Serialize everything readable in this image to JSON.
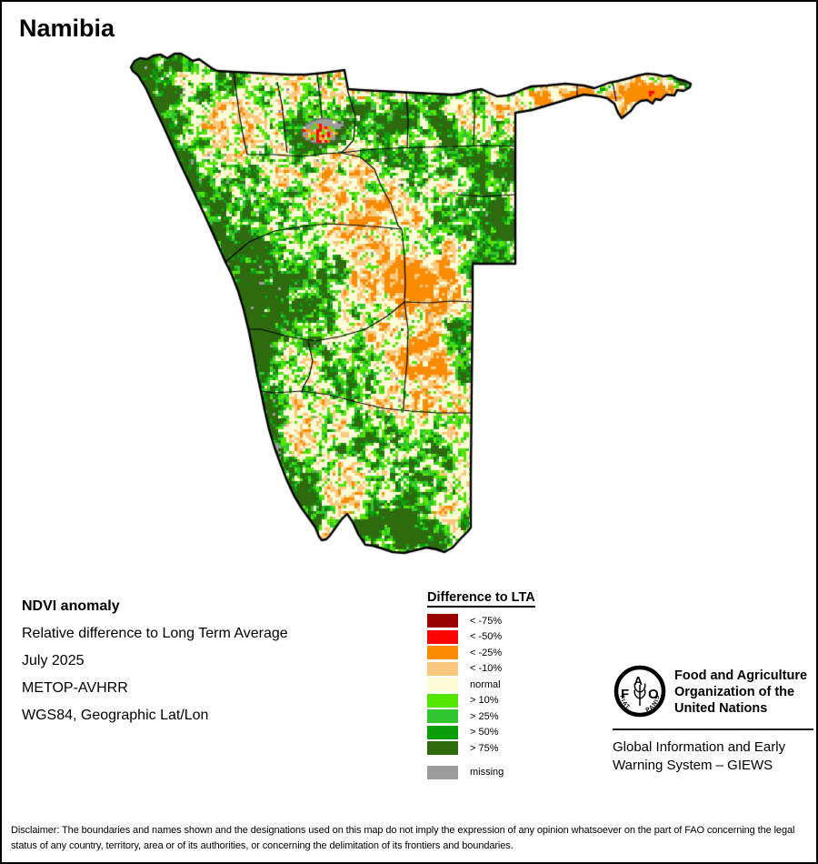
{
  "page": {
    "title": "Namibia"
  },
  "info": {
    "heading": "NDVI anomaly",
    "lines": [
      "Relative difference to Long Term Average",
      "July 2025",
      "METOP-AVHRR",
      "WGS84, Geographic Lat/Lon"
    ]
  },
  "legend": {
    "title": "Difference to LTA",
    "items": [
      {
        "label": "< -75%",
        "color": "#990000"
      },
      {
        "label": "< -50%",
        "color": "#FB0300"
      },
      {
        "label": "< -25%",
        "color": "#FB8B00"
      },
      {
        "label": "< -10%",
        "color": "#FBC87D"
      },
      {
        "label": "normal",
        "color": "#FEFDD8"
      },
      {
        "label": "> 10%",
        "color": "#54E501"
      },
      {
        "label": "> 25%",
        "color": "#2FC62F"
      },
      {
        "label": "> 50%",
        "color": "#0B9E0B"
      },
      {
        "label": "> 75%",
        "color": "#2E6B0F"
      }
    ],
    "missing_item": {
      "label": "missing",
      "color": "#9C9C9C"
    }
  },
  "branding": {
    "fao_f": "F",
    "fao_a": "A",
    "fao_o": "O",
    "fiat": "FIAT",
    "panis": "PANIS",
    "org_name_lines": [
      "Food and Agriculture",
      "Organization of the",
      "United Nations"
    ],
    "giews_lines": [
      "Global Information and Early",
      "Warning System – GIEWS"
    ]
  },
  "disclaimer": "Disclaimer: The boundaries and names shown and the designations used on this map do not imply the expression of any opinion whatsoever on the part of FAO concerning the legal status of any country, territory, area or of its authorities, or concerning the delimitation of its frontiers and boundaries.",
  "map_palette": {
    "outline": "#000000",
    "admin_line": "#000000",
    "pan_outline": "#666666",
    "dark_red": "#990000",
    "red": "#FB0300",
    "orange": "#FB8B00",
    "light_orange": "#FBC87D",
    "normal": "#FEFDD8",
    "bright_green": "#54E501",
    "mid_green": "#2FC62F",
    "deep_green": "#0B9E0B",
    "dark_green": "#2E6B0F",
    "missing_gray": "#9C9C9C"
  }
}
